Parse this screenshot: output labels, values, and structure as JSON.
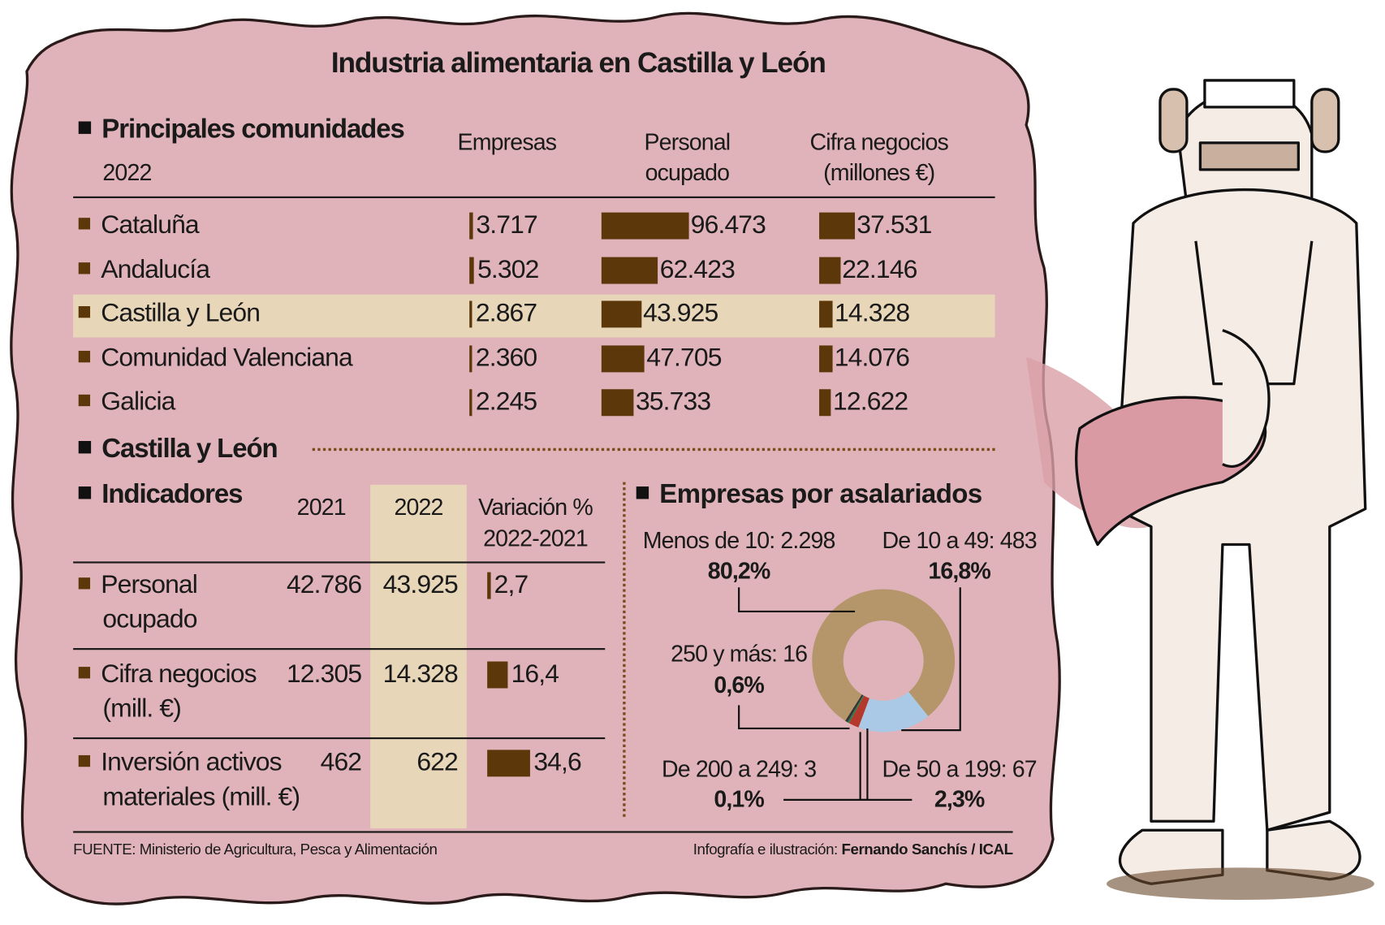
{
  "title": "Industria alimentaria en Castilla y León",
  "colors": {
    "background_blob": "#dfb3b9",
    "highlight": "#e8d6b9",
    "bar": "#5b3709",
    "donut_tan": "#b5966a",
    "donut_blue": "#a9c9e6",
    "donut_red": "#b4382c",
    "donut_green": "#2e7d4f",
    "donut_dark": "#333333"
  },
  "communities": {
    "heading": "Principales comunidades",
    "year": "2022",
    "columns": [
      "Empresas",
      "Personal",
      "ocupado",
      "Cifra negocios",
      "(millones €)"
    ],
    "rows": [
      {
        "name": "Cataluña",
        "empresas": "3.717",
        "personal": "96.473",
        "cifra": "37.531",
        "empresas_v": 3717,
        "personal_v": 96473,
        "cifra_v": 37531
      },
      {
        "name": "Andalucía",
        "empresas": "5.302",
        "personal": "62.423",
        "cifra": "22.146",
        "empresas_v": 5302,
        "personal_v": 62423,
        "cifra_v": 22146
      },
      {
        "name": "Castilla y León",
        "empresas": "2.867",
        "personal": "43.925",
        "cifra": "14.328",
        "empresas_v": 2867,
        "personal_v": 43925,
        "cifra_v": 14328,
        "highlighted": true
      },
      {
        "name": "Comunidad Valenciana",
        "empresas": "2.360",
        "personal": "47.705",
        "cifra": "14.076",
        "empresas_v": 2360,
        "personal_v": 47705,
        "cifra_v": 14076
      },
      {
        "name": "Galicia",
        "empresas": "2.245",
        "personal": "35.733",
        "cifra": "12.622",
        "empresas_v": 2245,
        "personal_v": 35733,
        "cifra_v": 12622
      }
    ]
  },
  "cyl": {
    "heading": "Castilla y León",
    "indicators": {
      "heading": "Indicadores",
      "columns": [
        "2021",
        "2022",
        "Variación %",
        "2022-2021"
      ],
      "rows": [
        {
          "label1": "Personal",
          "label2": "ocupado",
          "y2021": "42.786",
          "y2022": "43.925",
          "var": "2,7",
          "var_v": 2.7
        },
        {
          "label1": "Cifra negocios",
          "label2": "(mill. €)",
          "y2021": "12.305",
          "y2022": "14.328",
          "var": "16,4",
          "var_v": 16.4
        },
        {
          "label1": "Inversión activos",
          "label2": "materiales (mill. €)",
          "y2021": "462",
          "y2022": "622",
          "var": "34,6",
          "var_v": 34.6
        }
      ]
    },
    "donut": {
      "heading": "Empresas por asalariados",
      "slices": [
        {
          "label": "Menos de 10: 2.298",
          "pct": "80,2%",
          "value": 80.2
        },
        {
          "label": "De 10 a 49: 483",
          "pct": "16,8%",
          "value": 16.8
        },
        {
          "label": "De 50 a 199: 67",
          "pct": "2,3%",
          "value": 2.3
        },
        {
          "label": "De 200 a 249: 3",
          "pct": "0,1%",
          "value": 0.1
        },
        {
          "label": "250 y más: 16",
          "pct": "0,6%",
          "value": 0.6
        }
      ]
    }
  },
  "footer": {
    "source": "FUENTE: Ministerio de Agricultura, Pesca y Alimentación",
    "credit_prefix": "Infografía e ilustración: ",
    "credit_name": "Fernando Sanchís / ICAL"
  }
}
